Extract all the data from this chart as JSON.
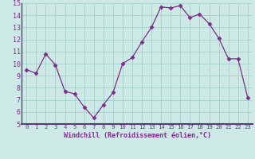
{
  "x": [
    0,
    1,
    2,
    3,
    4,
    5,
    6,
    7,
    8,
    9,
    10,
    11,
    12,
    13,
    14,
    15,
    16,
    17,
    18,
    19,
    20,
    21,
    22,
    23
  ],
  "y": [
    9.5,
    9.2,
    10.8,
    9.9,
    7.7,
    7.5,
    6.4,
    5.5,
    6.6,
    7.6,
    10.0,
    10.5,
    11.8,
    13.0,
    14.7,
    14.6,
    14.8,
    13.8,
    14.1,
    13.3,
    12.1,
    10.4,
    10.4,
    7.2
  ],
  "line_color": "#7b2d8b",
  "marker": "D",
  "marker_size": 2.5,
  "bg_color": "#cce9e5",
  "grid_color": "#aad4cf",
  "axis_label_color": "#7b2d8b",
  "tick_color": "#7b2d8b",
  "xlabel": "Windchill (Refroidissement éolien,°C)",
  "ylim": [
    5,
    15
  ],
  "xlim": [
    -0.5,
    23.5
  ],
  "yticks": [
    5,
    6,
    7,
    8,
    9,
    10,
    11,
    12,
    13,
    14,
    15
  ],
  "xticks": [
    0,
    1,
    2,
    3,
    4,
    5,
    6,
    7,
    8,
    9,
    10,
    11,
    12,
    13,
    14,
    15,
    16,
    17,
    18,
    19,
    20,
    21,
    22,
    23
  ],
  "separator_color": "#5a3a7a",
  "xlabel_fontsize": 6.0,
  "tick_fontsize_x": 5.2,
  "tick_fontsize_y": 6.0
}
